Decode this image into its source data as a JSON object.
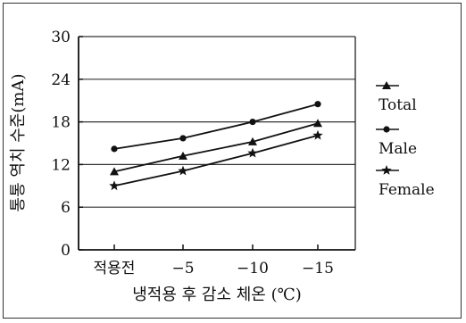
{
  "chart_data": {
    "type": "line",
    "title": "",
    "xlabel": "냉적용 후 감소 체온 (℃)",
    "ylabel": "통통 역치 수준(mA)",
    "categories": [
      "적용전",
      "−5",
      "−10",
      "−15"
    ],
    "ylim": [
      0,
      30
    ],
    "yticks": [
      "0",
      "6",
      "12",
      "18",
      "24",
      "30"
    ],
    "grid": "horizontal",
    "legend_position": "right",
    "series": [
      {
        "name": "Total",
        "marker": "triangle",
        "values": [
          11,
          13.2,
          15.2,
          17.8
        ]
      },
      {
        "name": "Male",
        "marker": "circle",
        "values": [
          14.2,
          15.7,
          18,
          20.5
        ]
      },
      {
        "name": "Female",
        "marker": "star",
        "values": [
          9,
          11.1,
          13.6,
          16.1
        ]
      }
    ],
    "line_color": "#111111",
    "grid_color": "#333333"
  }
}
